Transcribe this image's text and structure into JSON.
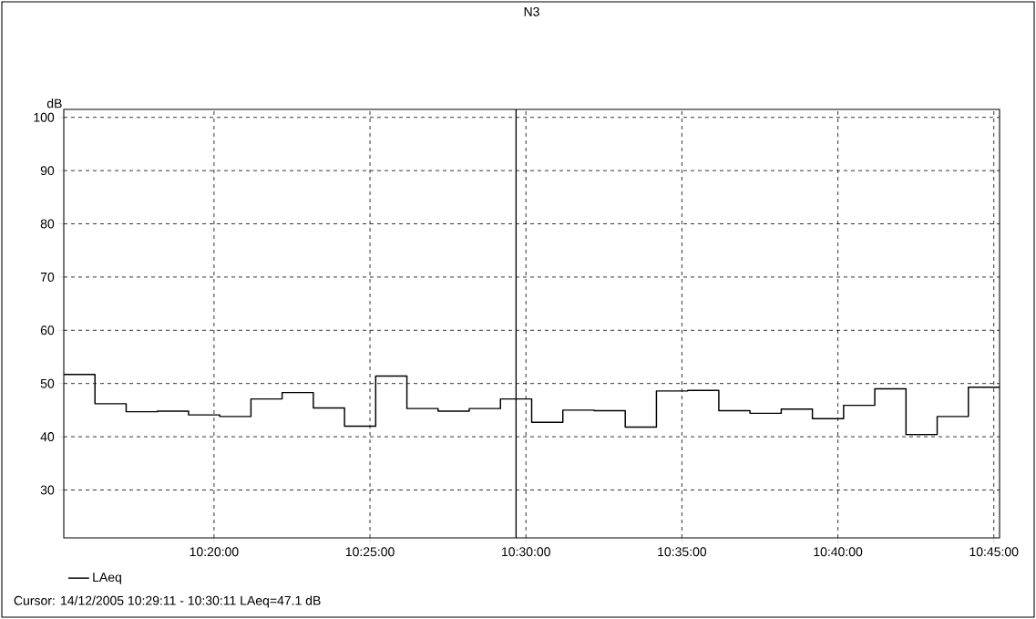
{
  "chart_data": {
    "type": "step",
    "title": "N3",
    "ylabel": "dB",
    "x": [
      10.25306,
      10.26972,
      10.28639,
      10.30306,
      10.31972,
      10.33639,
      10.35306,
      10.36972,
      10.38639,
      10.40306,
      10.41972,
      10.43639,
      10.45306,
      10.46972,
      10.48639,
      10.50306,
      10.51972,
      10.53639,
      10.55306,
      10.56972,
      10.58639,
      10.60306,
      10.61972,
      10.63639,
      10.65306,
      10.66972,
      10.68639,
      10.70306,
      10.71972,
      10.73639
    ],
    "series": [
      {
        "name": "LAeq",
        "color": "#000000",
        "values": [
          51.7,
          46.2,
          44.7,
          44.8,
          44.1,
          43.8,
          47.1,
          48.3,
          45.4,
          42.0,
          51.4,
          45.3,
          44.8,
          45.3,
          47.1,
          42.7,
          45.0,
          44.9,
          41.8,
          48.6,
          48.7,
          44.9,
          44.4,
          45.2,
          43.4,
          45.9,
          49.0,
          40.4,
          43.8,
          49.3
        ]
      }
    ],
    "xlim": [
      10.25306,
      10.75306
    ],
    "xticks": [
      {
        "value": 10.33333,
        "label": "10:20:00"
      },
      {
        "value": 10.41667,
        "label": "10:25:00"
      },
      {
        "value": 10.5,
        "label": "10:30:00"
      },
      {
        "value": 10.58333,
        "label": "10:35:00"
      },
      {
        "value": 10.66667,
        "label": "10:40:00"
      },
      {
        "value": 10.75,
        "label": "10:45:00"
      }
    ],
    "ylim": [
      21,
      101.5
    ],
    "yticks": [
      30,
      40,
      50,
      60,
      70,
      80,
      90,
      100
    ],
    "grid": true,
    "legend": "bottom left",
    "line_style": "solid",
    "marker": "none",
    "ref_lines": [
      {
        "axis": "x",
        "value": 10.49472,
        "color": "#000000",
        "line_style": "solid"
      }
    ],
    "annotations": [
      "Cursor: 14/12/2005 10:29:11 - 10:30:11  LAeq=47.1 dB"
    ]
  }
}
